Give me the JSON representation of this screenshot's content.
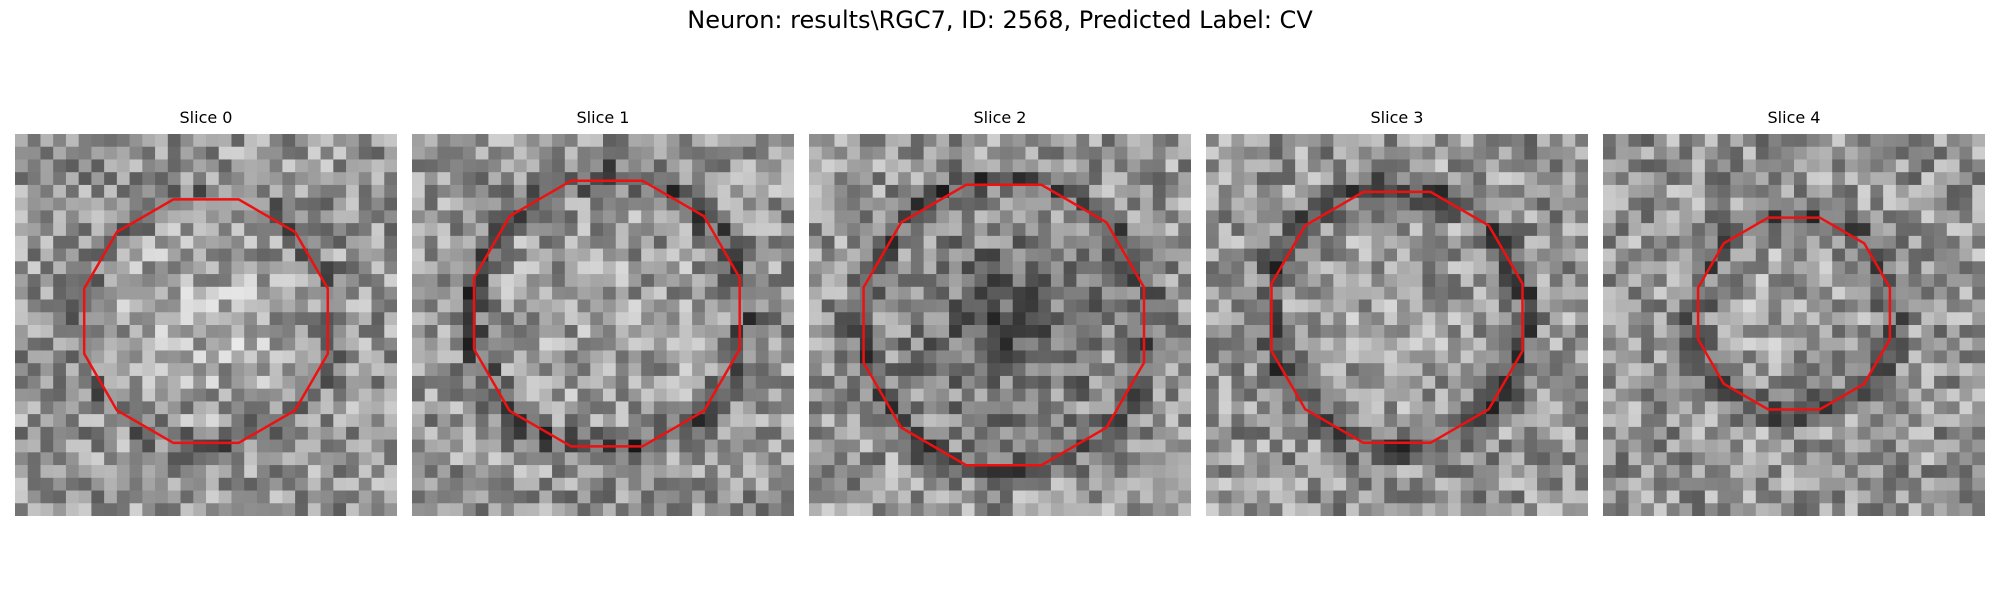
{
  "figure": {
    "title": "Neuron: results\\RGC7, ID: 2568, Predicted Label: CV",
    "contour_color": "#ee1111",
    "colormap": "gray"
  },
  "slices": [
    {
      "title": "Slice 0"
    },
    {
      "title": "Slice 1"
    },
    {
      "title": "Slice 2"
    },
    {
      "title": "Slice 3"
    },
    {
      "title": "Slice 4"
    }
  ]
}
